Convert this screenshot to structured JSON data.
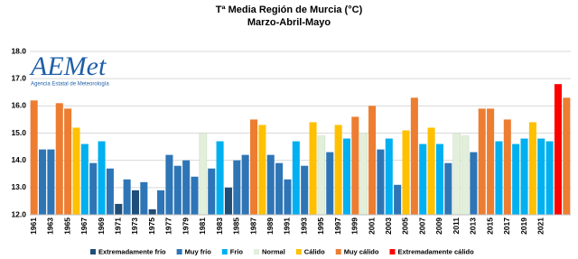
{
  "chart_data": {
    "type": "bar",
    "title": "Tª Media Región de Murcia (°C)",
    "subtitle": "Marzo-Abril-Mayo",
    "annotations": [
      "AEMet",
      "Agencia Estatal de Meteorología"
    ],
    "categories": [
      "1961",
      null,
      "1963",
      null,
      "1965",
      null,
      "1967",
      null,
      "1969",
      null,
      "1971",
      null,
      "1973",
      null,
      "1975",
      null,
      "1977",
      null,
      "1979",
      null,
      "1981",
      null,
      "1983",
      null,
      "1985",
      null,
      "1987",
      null,
      "1989",
      null,
      "1991",
      null,
      "1993",
      null,
      "1995",
      null,
      "1997",
      null,
      "1999",
      null,
      "2001",
      null,
      "2003",
      null,
      "2005",
      null,
      "2007",
      null,
      "2009",
      null,
      "2011",
      null,
      "2013",
      null,
      "2015",
      null,
      "2017",
      null,
      "2019",
      null,
      "2021",
      null,
      null,
      null
    ],
    "values": [
      16.2,
      14.4,
      14.4,
      16.1,
      15.9,
      15.2,
      14.6,
      13.9,
      14.7,
      13.7,
      12.4,
      13.3,
      12.9,
      13.2,
      12.2,
      12.9,
      14.2,
      13.8,
      14.0,
      13.4,
      15.0,
      13.7,
      14.7,
      13.0,
      14.0,
      14.2,
      15.5,
      15.3,
      14.2,
      13.9,
      13.3,
      14.7,
      13.8,
      15.4,
      14.9,
      14.3,
      15.3,
      14.8,
      15.6,
      15.0,
      16.0,
      14.4,
      14.8,
      13.1,
      15.1,
      16.3,
      14.6,
      15.2,
      14.6,
      13.9,
      15.0,
      14.9,
      14.3,
      15.9,
      15.9,
      14.7,
      15.5,
      14.6,
      14.8,
      15.4,
      14.8,
      14.7,
      16.8,
      16.3
    ],
    "colors": [
      "#ed7d31",
      "#2e75b6",
      "#2e75b6",
      "#ed7d31",
      "#ed7d31",
      "#ffc000",
      "#00b0f0",
      "#2e75b6",
      "#00b0f0",
      "#2e75b6",
      "#1f4e79",
      "#2e75b6",
      "#1f4e79",
      "#2e75b6",
      "#1f4e79",
      "#2e75b6",
      "#2e75b6",
      "#2e75b6",
      "#2e75b6",
      "#2e75b6",
      "#e2efda",
      "#2e75b6",
      "#00b0f0",
      "#1f4e79",
      "#2e75b6",
      "#2e75b6",
      "#ed7d31",
      "#ffc000",
      "#2e75b6",
      "#2e75b6",
      "#2e75b6",
      "#00b0f0",
      "#2e75b6",
      "#ffc000",
      "#e2efda",
      "#2e75b6",
      "#ffc000",
      "#00b0f0",
      "#ed7d31",
      "#e2efda",
      "#ed7d31",
      "#2e75b6",
      "#00b0f0",
      "#2e75b6",
      "#ffc000",
      "#ed7d31",
      "#00b0f0",
      "#ffc000",
      "#00b0f0",
      "#2e75b6",
      "#e2efda",
      "#e2efda",
      "#2e75b6",
      "#ed7d31",
      "#ed7d31",
      "#00b0f0",
      "#ed7d31",
      "#00b0f0",
      "#00b0f0",
      "#ffc000",
      "#00b0f0",
      "#00b0f0",
      "#ff0000",
      "#ed7d31"
    ],
    "legend": [
      {
        "name": "Extremadamente frío",
        "color": "#1f4e79"
      },
      {
        "name": "Muy frío",
        "color": "#2e75b6"
      },
      {
        "name": "Frío",
        "color": "#00b0f0"
      },
      {
        "name": "Normal",
        "color": "#e2efda"
      },
      {
        "name": "Cálido",
        "color": "#ffc000"
      },
      {
        "name": "Muy cálido",
        "color": "#ed7d31"
      },
      {
        "name": "Extremadamente cálido",
        "color": "#ff0000"
      }
    ],
    "ylim": [
      12,
      18
    ],
    "yticks": [
      {
        "value": 12,
        "label": "12.0"
      },
      {
        "value": 13,
        "label": "13.0"
      },
      {
        "value": 14,
        "label": "14.0"
      },
      {
        "value": 15,
        "label": "15.0"
      },
      {
        "value": 16,
        "label": "16.0"
      },
      {
        "value": 17,
        "label": "17.0"
      },
      {
        "value": 18,
        "label": "18.0"
      }
    ],
    "grid": true
  }
}
